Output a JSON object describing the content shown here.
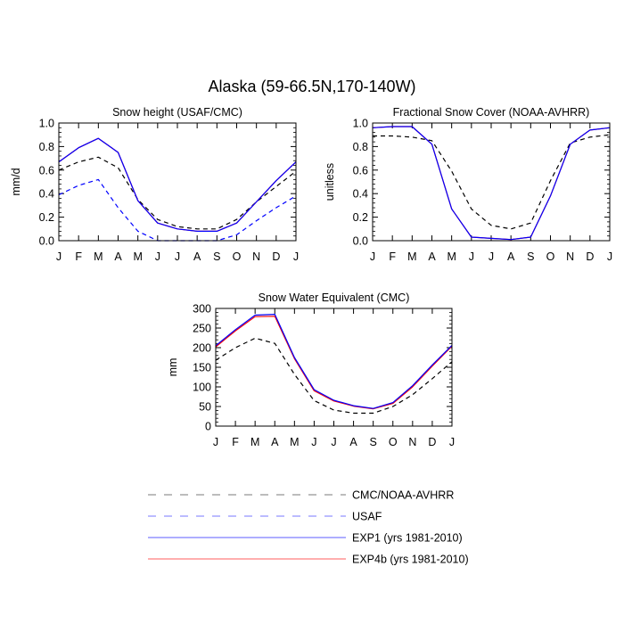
{
  "figure_title": "Alaska (59-66.5N,170-140W)",
  "legend": {
    "entries": [
      {
        "label": "CMC/NOAA-AVHRR",
        "color": "#000000",
        "dash": "dashed"
      },
      {
        "label": "USAF",
        "color": "#0000ff",
        "dash": "dashed"
      },
      {
        "label": "EXP1 (yrs 1981-2010)",
        "color": "#0000ff",
        "dash": "solid"
      },
      {
        "label": "EXP4b (yrs 1981-2010)",
        "color": "#ff0000",
        "dash": "solid"
      }
    ]
  },
  "chart_data": [
    {
      "type": "line",
      "title": "Snow height (USAF/CMC)",
      "xlabel": "",
      "ylabel": "mm/d",
      "categories": [
        "J",
        "F",
        "M",
        "A",
        "M",
        "J",
        "J",
        "A",
        "S",
        "O",
        "N",
        "D",
        "J"
      ],
      "ylim": [
        0,
        1.0
      ],
      "yticks": [
        "0.0",
        "0.2",
        "0.4",
        "0.6",
        "0.8",
        "1.0"
      ],
      "series": [
        {
          "name": "CMC/NOAA-AVHRR",
          "color": "#000000",
          "dash": "dashed",
          "values": [
            0.6,
            0.67,
            0.71,
            0.62,
            0.35,
            0.18,
            0.12,
            0.1,
            0.1,
            0.18,
            0.33,
            0.46,
            0.59
          ]
        },
        {
          "name": "USAF",
          "color": "#0000ff",
          "dash": "dashed",
          "values": [
            0.39,
            0.47,
            0.52,
            0.28,
            0.08,
            0.0,
            0.0,
            0.0,
            0.0,
            0.05,
            0.17,
            0.28,
            0.38
          ]
        },
        {
          "name": "EXP4b (yrs 1981-2010)",
          "color": "#ff0000",
          "dash": "solid",
          "values": [
            0.67,
            0.79,
            0.87,
            0.75,
            0.34,
            0.15,
            0.1,
            0.08,
            0.08,
            0.15,
            0.33,
            0.51,
            0.67
          ]
        },
        {
          "name": "EXP1 (yrs 1981-2010)",
          "color": "#0000ff",
          "dash": "solid",
          "values": [
            0.67,
            0.79,
            0.87,
            0.75,
            0.34,
            0.15,
            0.1,
            0.08,
            0.08,
            0.15,
            0.33,
            0.51,
            0.67
          ]
        }
      ]
    },
    {
      "type": "line",
      "title": "Fractional Snow Cover (NOAA-AVHRR)",
      "xlabel": "",
      "ylabel": "unitless",
      "categories": [
        "J",
        "F",
        "M",
        "A",
        "M",
        "J",
        "J",
        "A",
        "S",
        "O",
        "N",
        "D",
        "J"
      ],
      "ylim": [
        0,
        1.0
      ],
      "yticks": [
        "0.0",
        "0.2",
        "0.4",
        "0.6",
        "0.8",
        "1.0"
      ],
      "series": [
        {
          "name": "CMC/NOAA-AVHRR",
          "color": "#000000",
          "dash": "dashed",
          "values": [
            0.89,
            0.89,
            0.88,
            0.85,
            0.59,
            0.27,
            0.13,
            0.1,
            0.15,
            0.51,
            0.83,
            0.88,
            0.9
          ]
        },
        {
          "name": "EXP4b (yrs 1981-2010)",
          "color": "#ff0000",
          "dash": "solid",
          "values": [
            0.96,
            0.97,
            0.97,
            0.82,
            0.27,
            0.03,
            0.02,
            0.01,
            0.03,
            0.38,
            0.82,
            0.94,
            0.96
          ]
        },
        {
          "name": "EXP1 (yrs 1981-2010)",
          "color": "#0000ff",
          "dash": "solid",
          "values": [
            0.96,
            0.97,
            0.97,
            0.82,
            0.27,
            0.03,
            0.02,
            0.01,
            0.03,
            0.38,
            0.82,
            0.94,
            0.96
          ]
        }
      ]
    },
    {
      "type": "line",
      "title": "Snow Water Equivalent (CMC)",
      "xlabel": "",
      "ylabel": "mm",
      "categories": [
        "J",
        "F",
        "M",
        "A",
        "M",
        "J",
        "J",
        "A",
        "S",
        "O",
        "N",
        "D",
        "J"
      ],
      "ylim": [
        0,
        300
      ],
      "yticks": [
        "0",
        "50",
        "100",
        "150",
        "200",
        "250",
        "300"
      ],
      "series": [
        {
          "name": "CMC/NOAA-AVHRR",
          "color": "#000000",
          "dash": "dashed",
          "values": [
            168,
            200,
            224,
            211,
            132,
            65,
            41,
            33,
            33,
            50,
            80,
            121,
            164
          ]
        },
        {
          "name": "EXP4b (yrs 1981-2010)",
          "color": "#ff0000",
          "dash": "solid",
          "values": [
            202,
            243,
            279,
            280,
            172,
            90,
            64,
            51,
            44,
            58,
            100,
            153,
            204
          ]
        },
        {
          "name": "EXP1 (yrs 1981-2010)",
          "color": "#0000ff",
          "dash": "solid",
          "values": [
            205,
            246,
            283,
            285,
            175,
            93,
            66,
            52,
            45,
            60,
            103,
            156,
            206
          ]
        }
      ]
    }
  ]
}
